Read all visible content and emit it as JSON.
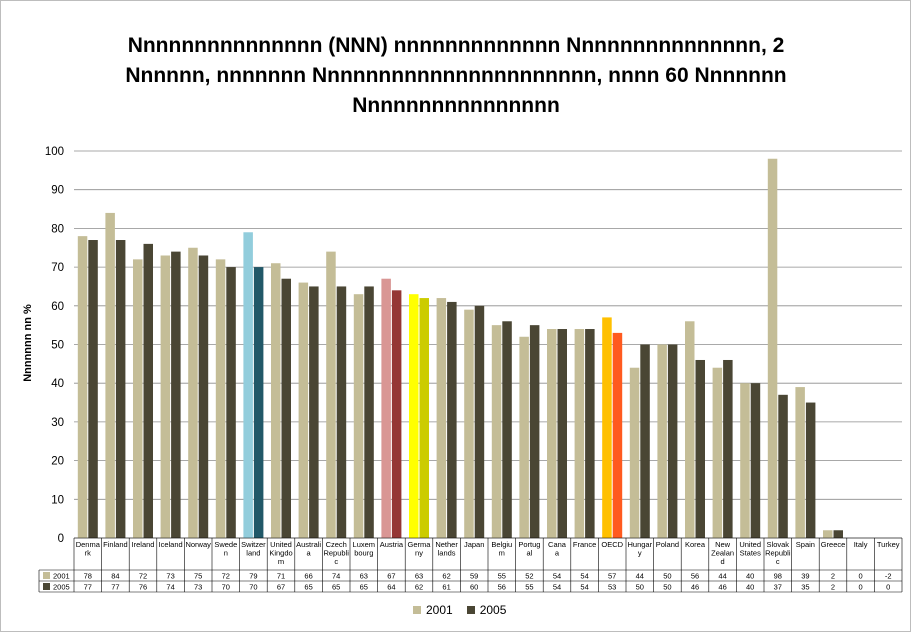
{
  "chart_data": {
    "type": "bar",
    "title_lines": [
      "Nnnnnnnnnnnnnnn (NNN) nnnnnnnnnnnnn  Nnnnnnnnnnnnnnn, 2",
      "Nnnnnn, nnnnnnn Nnnnnnnnnnnnnnnnnnnnnn,  nnnn 60 Nnnnnnn",
      "Nnnnnnnnnnnnnnnn"
    ],
    "ylabel": "Nnnnnnn nn %",
    "ylim": [
      0,
      100
    ],
    "yticks": [
      0,
      10,
      20,
      30,
      40,
      50,
      60,
      70,
      80,
      90,
      100
    ],
    "grid": true,
    "legend_position": "bottom",
    "categories": [
      [
        "Denma",
        "rk"
      ],
      [
        "Finland"
      ],
      [
        "Ireland"
      ],
      [
        "Iceland"
      ],
      [
        "Norway"
      ],
      [
        "Swede",
        "n"
      ],
      [
        "Switzer",
        "land"
      ],
      [
        "United",
        "Kingdo",
        "m"
      ],
      [
        "Australi",
        "a"
      ],
      [
        "Czech",
        "Republi",
        "c"
      ],
      [
        "Luxem",
        "bourg"
      ],
      [
        "Austria"
      ],
      [
        "Germa",
        "ny"
      ],
      [
        "Nether",
        "lands"
      ],
      [
        "Japan"
      ],
      [
        "Belgiu",
        "m"
      ],
      [
        "Portug",
        "al"
      ],
      [
        "Cana",
        "a"
      ],
      [
        "France"
      ],
      [
        "OECD"
      ],
      [
        "Hungar",
        "y"
      ],
      [
        "Poland"
      ],
      [
        "Korea"
      ],
      [
        "New",
        "Zealan",
        "d"
      ],
      [
        "United",
        "States"
      ],
      [
        "Slovak",
        "Republi",
        "c"
      ],
      [
        "Spain"
      ],
      [
        "Greece"
      ],
      [
        "Italy"
      ],
      [
        "Turkey"
      ]
    ],
    "series": [
      {
        "name": "2001",
        "color": "#c4bd97",
        "values": [
          78,
          84,
          72,
          73,
          75,
          72,
          79,
          71,
          66,
          74,
          63,
          67,
          63,
          62,
          59,
          55,
          52,
          54,
          54,
          57,
          44,
          50,
          56,
          44,
          40,
          98,
          39,
          2,
          0,
          -2
        ],
        "labels": [
          "78",
          "84",
          "72",
          "73",
          "75",
          "72",
          "79",
          "71",
          "66",
          "74",
          "63",
          "67",
          "63",
          "62",
          "59",
          "55",
          "52",
          "54",
          "54",
          "57",
          "44",
          "50",
          "56",
          "44",
          "40",
          "98",
          "39",
          "2",
          "0",
          "-2"
        ]
      },
      {
        "name": "2005",
        "color": "#4a4634",
        "values": [
          77,
          77,
          76,
          74,
          73,
          70,
          70,
          67,
          65,
          65,
          65,
          64,
          62,
          61,
          60,
          56,
          55,
          54,
          54,
          53,
          50,
          50,
          46,
          46,
          40,
          37,
          35,
          2,
          0,
          0
        ],
        "labels": [
          "77",
          "77",
          "76",
          "74",
          "73",
          "70",
          "70",
          "67",
          "65",
          "65",
          "65",
          "64",
          "62",
          "61",
          "60",
          "56",
          "55",
          "54",
          "54",
          "53",
          "50",
          "50",
          "46",
          "46",
          "40",
          "37",
          "35",
          "2",
          "0",
          "0"
        ]
      }
    ],
    "highlights": [
      {
        "category_index": 6,
        "colors": [
          "#92cddc",
          "#215868"
        ]
      },
      {
        "category_index": 11,
        "colors": [
          "#d99694",
          "#953735"
        ]
      },
      {
        "category_index": 12,
        "colors": [
          "#ffff00",
          "#cccc00"
        ]
      },
      {
        "category_index": 19,
        "colors": [
          "#ffc000",
          "#ff5a1f"
        ]
      }
    ]
  }
}
